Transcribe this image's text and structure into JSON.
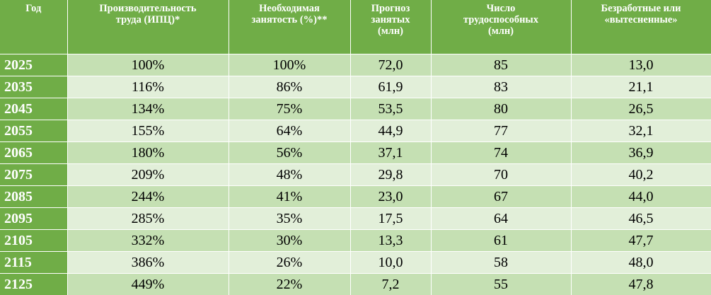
{
  "headers": [
    "Год",
    "Производительность\nтруда (ИПЦ)*",
    "Необходимая\nзанятость (%)**",
    "Прогноз\nзанятых\n(млн)",
    "Число\nтрудоспособных\n(млн)",
    "Безработные или\n«вытесненные»"
  ],
  "rows": [
    {
      "year": "2025",
      "productivity": "100%",
      "employment": "100%",
      "forecast": "72,0",
      "workforce": "85",
      "unemployed": "13,0"
    },
    {
      "year": "2035",
      "productivity": "116%",
      "employment": "86%",
      "forecast": "61,9",
      "workforce": "83",
      "unemployed": "21,1"
    },
    {
      "year": "2045",
      "productivity": "134%",
      "employment": "75%",
      "forecast": "53,5",
      "workforce": "80",
      "unemployed": "26,5"
    },
    {
      "year": "2055",
      "productivity": "155%",
      "employment": "64%",
      "forecast": "44,9",
      "workforce": "77",
      "unemployed": "32,1"
    },
    {
      "year": "2065",
      "productivity": "180%",
      "employment": "56%",
      "forecast": "37,1",
      "workforce": "74",
      "unemployed": "36,9"
    },
    {
      "year": "2075",
      "productivity": "209%",
      "employment": "48%",
      "forecast": "29,8",
      "workforce": "70",
      "unemployed": "40,2"
    },
    {
      "year": "2085",
      "productivity": "244%",
      "employment": "41%",
      "forecast": "23,0",
      "workforce": "67",
      "unemployed": "44,0"
    },
    {
      "year": "2095",
      "productivity": "285%",
      "employment": "35%",
      "forecast": "17,5",
      "workforce": "64",
      "unemployed": "46,5"
    },
    {
      "year": "2105",
      "productivity": "332%",
      "employment": "30%",
      "forecast": "13,3",
      "workforce": "61",
      "unemployed": "47,7"
    },
    {
      "year": "2115",
      "productivity": "386%",
      "employment": "26%",
      "forecast": "10,0",
      "workforce": "58",
      "unemployed": "48,0"
    },
    {
      "year": "2125",
      "productivity": "449%",
      "employment": "22%",
      "forecast": "7,2",
      "workforce": "55",
      "unemployed": "47,8"
    }
  ],
  "colors": {
    "header_bg": "#70ad47",
    "row_dark": "#c5e0b3",
    "row_light": "#e2efd9"
  }
}
